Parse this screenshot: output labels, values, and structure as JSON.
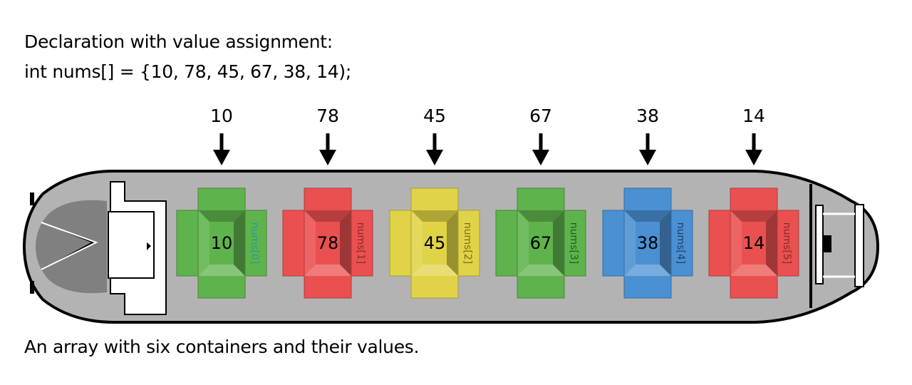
{
  "heading": "Declaration with value assignment:",
  "code": "int nums[] = {10, 78, 45, 67, 38, 14);",
  "caption": "An array with six containers and their values.",
  "elements": [
    {
      "value": "10",
      "index_label": "nums[0]",
      "color": "#5fb34c",
      "label_color": "#2a9d8f"
    },
    {
      "value": "78",
      "index_label": "nums[1]",
      "color": "#e9504f",
      "label_color": "#8a2a2a"
    },
    {
      "value": "45",
      "index_label": "nums[2]",
      "color": "#e0d347",
      "label_color": "#7a6f12"
    },
    {
      "value": "67",
      "index_label": "nums[3]",
      "color": "#5fb34c",
      "label_color": "#1f5f1c"
    },
    {
      "value": "38",
      "index_label": "nums[4]",
      "color": "#4a90d2",
      "label_color": "#1e3f63"
    },
    {
      "value": "14",
      "index_label": "nums[5]",
      "color": "#e9504f",
      "label_color": "#8a2a2a"
    }
  ]
}
